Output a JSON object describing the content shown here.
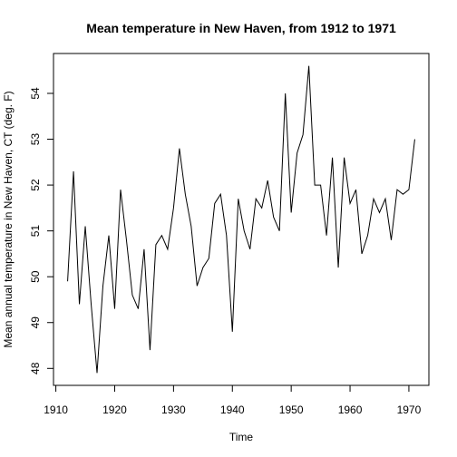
{
  "chart_data": {
    "type": "line",
    "title": "Mean temperature in New Haven, from 1912 to 1971",
    "xlabel": "Time",
    "ylabel": "Mean annual temperature in New Haven, CT (deg. F)",
    "xlim": [
      1909.6,
      1973.4
    ],
    "ylim": [
      47.63,
      54.87
    ],
    "xticks": [
      1910,
      1920,
      1930,
      1940,
      1950,
      1960,
      1970
    ],
    "yticks": [
      48,
      49,
      50,
      51,
      52,
      53,
      54
    ],
    "grid": false,
    "legend": "none",
    "line_color": "#000000",
    "x": [
      1912,
      1913,
      1914,
      1915,
      1916,
      1917,
      1918,
      1919,
      1920,
      1921,
      1922,
      1923,
      1924,
      1925,
      1926,
      1927,
      1928,
      1929,
      1930,
      1931,
      1932,
      1933,
      1934,
      1935,
      1936,
      1937,
      1938,
      1939,
      1940,
      1941,
      1942,
      1943,
      1944,
      1945,
      1946,
      1947,
      1948,
      1949,
      1950,
      1951,
      1952,
      1953,
      1954,
      1955,
      1956,
      1957,
      1958,
      1959,
      1960,
      1961,
      1962,
      1963,
      1964,
      1965,
      1966,
      1967,
      1968,
      1969,
      1970,
      1971
    ],
    "values": [
      49.9,
      52.3,
      49.4,
      51.1,
      49.4,
      47.9,
      49.8,
      50.9,
      49.3,
      51.9,
      50.8,
      49.6,
      49.3,
      50.6,
      48.4,
      50.7,
      50.9,
      50.6,
      51.5,
      52.8,
      51.8,
      51.1,
      49.8,
      50.2,
      50.4,
      51.6,
      51.8,
      50.9,
      48.8,
      51.7,
      51.0,
      50.6,
      51.7,
      51.5,
      52.1,
      51.3,
      51.0,
      54.0,
      51.4,
      52.7,
      53.1,
      54.6,
      52.0,
      52.0,
      50.9,
      52.6,
      50.2,
      52.6,
      51.6,
      51.9,
      50.5,
      50.9,
      51.7,
      51.4,
      51.7,
      50.8,
      51.9,
      51.8,
      51.9,
      53.0
    ]
  }
}
